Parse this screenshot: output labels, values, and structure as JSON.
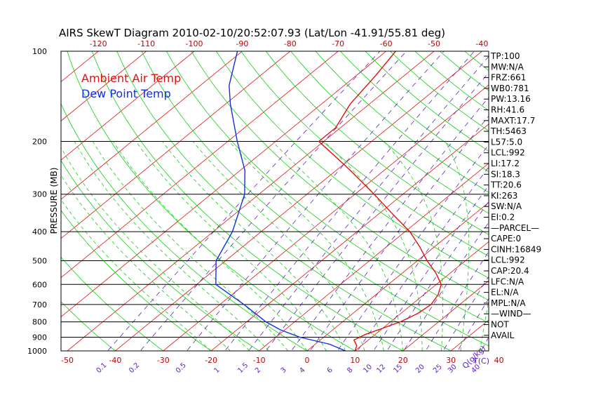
{
  "chart_data": {
    "type": "line",
    "title": "AIRS SkewT Diagram 2010-02-10/20:52:07.93 (Lat/Lon -41.91/55.81 deg)",
    "ylabel": "PRESSURE (MB)",
    "xlabel": "T(C)",
    "mixing_ratio_unit": "Q(g/kg)",
    "y_scale": "log",
    "ylim": [
      1000,
      100
    ],
    "xlim": [
      -50,
      40
    ],
    "pressure_ticks": [
      100,
      200,
      300,
      400,
      500,
      600,
      700,
      800,
      900,
      1000
    ],
    "bottom_temp_ticks": [
      -50,
      -40,
      -30,
      -20,
      -10,
      0,
      10,
      20,
      30,
      40
    ],
    "top_temp_ticks": [
      -120,
      -110,
      -100,
      -90,
      -80,
      -70,
      -60,
      -50,
      -40
    ],
    "mixing_ratio_labels": [
      "0.1",
      "0.2",
      "0.5",
      "1",
      "1.5",
      "2",
      "3",
      "4",
      "6",
      "8",
      "10",
      "12",
      "15",
      "20",
      "25",
      "30",
      "40"
    ],
    "legend": [
      {
        "name": "Ambient Air Temp",
        "color": "#e01010"
      },
      {
        "name": "Dew Point Temp",
        "color": "#1030e0"
      }
    ],
    "series": [
      {
        "name": "Ambient Air Temp",
        "color": "#e01010",
        "points": [
          {
            "p": 1000,
            "t": 10
          },
          {
            "p": 960,
            "t": 9
          },
          {
            "p": 920,
            "t": 7
          },
          {
            "p": 880,
            "t": 8
          },
          {
            "p": 850,
            "t": 9.5
          },
          {
            "p": 800,
            "t": 12
          },
          {
            "p": 750,
            "t": 13.5
          },
          {
            "p": 700,
            "t": 14
          },
          {
            "p": 650,
            "t": 13
          },
          {
            "p": 600,
            "t": 11
          },
          {
            "p": 550,
            "t": 7
          },
          {
            "p": 500,
            "t": 2
          },
          {
            "p": 450,
            "t": -3
          },
          {
            "p": 400,
            "t": -9
          },
          {
            "p": 350,
            "t": -17
          },
          {
            "p": 300,
            "t": -26
          },
          {
            "p": 250,
            "t": -37
          },
          {
            "p": 220,
            "t": -45
          },
          {
            "p": 200,
            "t": -51
          },
          {
            "p": 180,
            "t": -51
          },
          {
            "p": 150,
            "t": -54
          },
          {
            "p": 120,
            "t": -56
          },
          {
            "p": 100,
            "t": -58
          }
        ]
      },
      {
        "name": "Dew Point Temp",
        "color": "#1030e0",
        "points": [
          {
            "p": 1000,
            "t": 8
          },
          {
            "p": 950,
            "t": 3
          },
          {
            "p": 900,
            "t": -5
          },
          {
            "p": 850,
            "t": -11
          },
          {
            "p": 800,
            "t": -16
          },
          {
            "p": 700,
            "t": -25
          },
          {
            "p": 600,
            "t": -36
          },
          {
            "p": 500,
            "t": -42
          },
          {
            "p": 400,
            "t": -46
          },
          {
            "p": 300,
            "t": -53
          },
          {
            "p": 250,
            "t": -59
          },
          {
            "p": 200,
            "t": -68
          },
          {
            "p": 150,
            "t": -79
          },
          {
            "p": 130,
            "t": -84
          },
          {
            "p": 100,
            "t": -91
          }
        ]
      }
    ],
    "indices": [
      "TP:100",
      "MW:N/A",
      "FRZ:661",
      "WB0:781",
      "PW:13.16",
      "RH:41.6",
      "MAXT:17.7",
      "TH:5463",
      "L57:5.0",
      "LCL:992",
      "LI:17.2",
      "SI:18.3",
      "TT:20.6",
      "KI:263",
      "SW:N/A",
      "EI:0.2",
      "—PARCEL—",
      "CAPE:0",
      "CINH:16849",
      "LCL:992",
      "CAP:20.4",
      "LFC:N/A",
      "EL:N/A",
      "MPL:N/A",
      "—WIND—",
      "NOT",
      "AVAIL"
    ],
    "colors": {
      "isotherm": "#e01010",
      "dry_adiabat": "#10d010",
      "moist_adiabat": "#10d010",
      "mixing_ratio": "#6020c0",
      "isobar": "#000000",
      "mixing_ratio_label": "#6020c0",
      "temp_label": "#c00000"
    }
  }
}
